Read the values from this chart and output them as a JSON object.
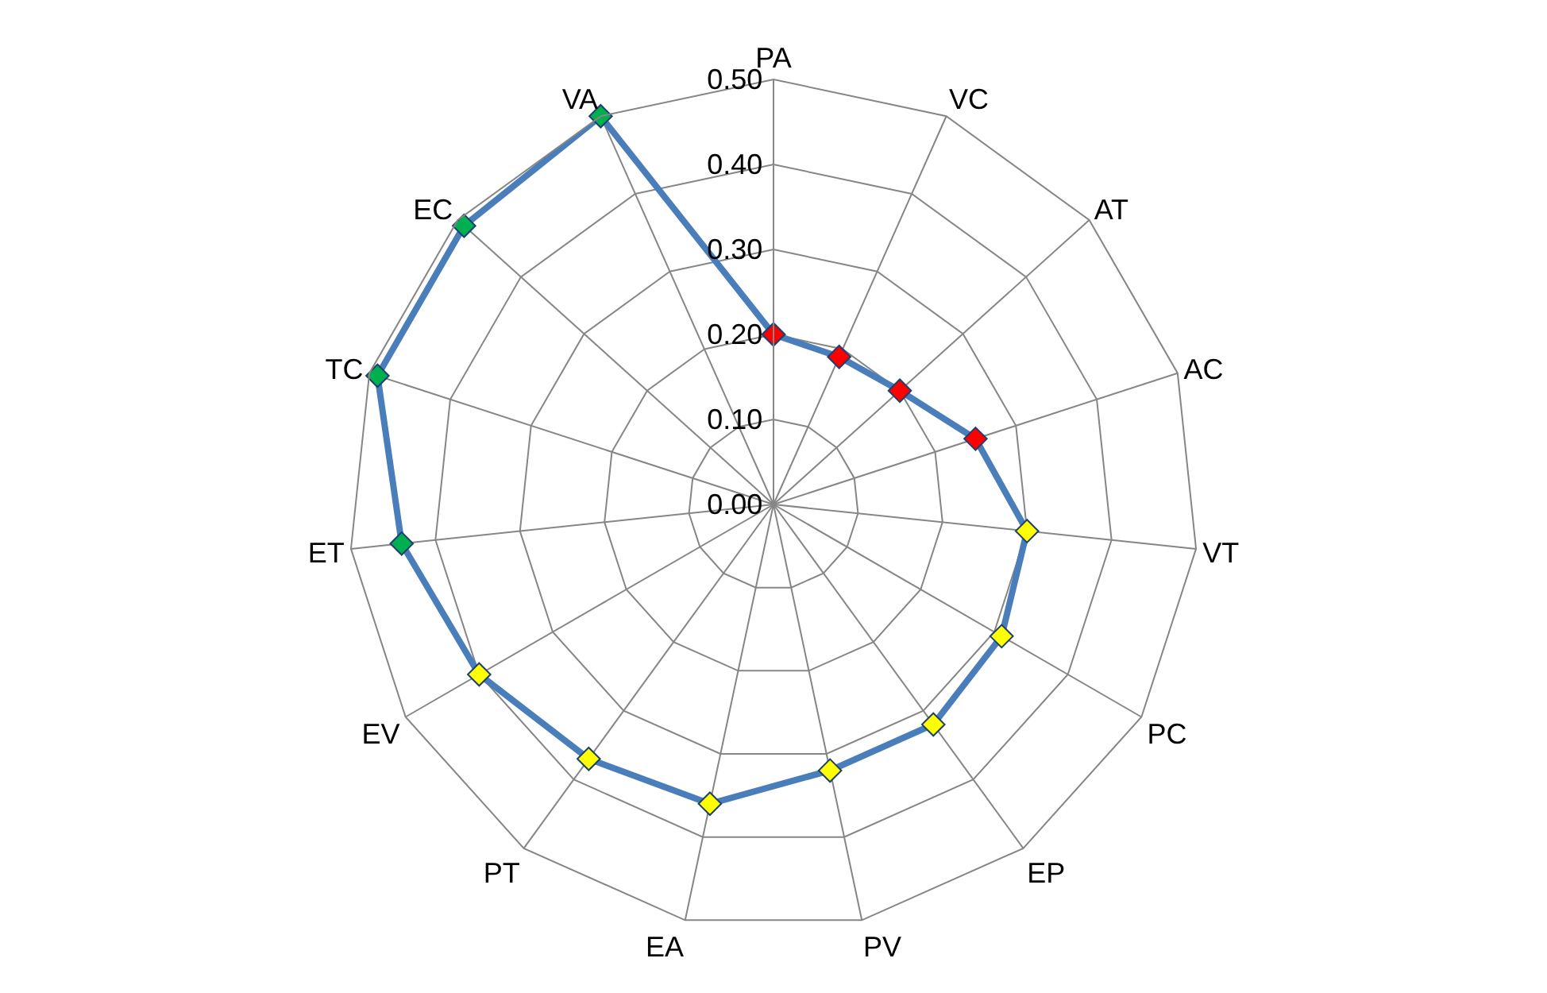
{
  "chart_data": {
    "type": "radar",
    "categories": [
      "PA",
      "VC",
      "AT",
      "AC",
      "VT",
      "PC",
      "EP",
      "PV",
      "EA",
      "PT",
      "EV",
      "ET",
      "TC",
      "EC",
      "VA"
    ],
    "series": [
      {
        "color": "#4a7ebb",
        "values": [
          0.2,
          0.19,
          0.2,
          0.25,
          0.3,
          0.31,
          0.32,
          0.32,
          0.36,
          0.37,
          0.4,
          0.44,
          0.49,
          0.49,
          0.5
        ],
        "colors": [
          "#ff0000",
          "#ff0000",
          "#ff0000",
          "#ff0000",
          "#ffff00",
          "#ffff00",
          "#ffff00",
          "#ffff00",
          "#ffff00",
          "#ffff00",
          "#ffff00",
          "#00b050",
          "#00b050",
          "#00b050",
          "#00b050"
        ]
      }
    ],
    "ylim": [
      0,
      0.5
    ],
    "yticks": [
      {
        "value": 0,
        "label": "0.00"
      },
      {
        "value": 0.1,
        "label": "0.10"
      },
      {
        "value": 0.2,
        "label": "0.20"
      },
      {
        "value": 0.3,
        "label": "0.30"
      },
      {
        "value": 0.4,
        "label": "0.40"
      },
      {
        "value": 0.5,
        "label": "0.50"
      }
    ],
    "grid": true,
    "marker": "diamond",
    "line_style": "solid"
  }
}
